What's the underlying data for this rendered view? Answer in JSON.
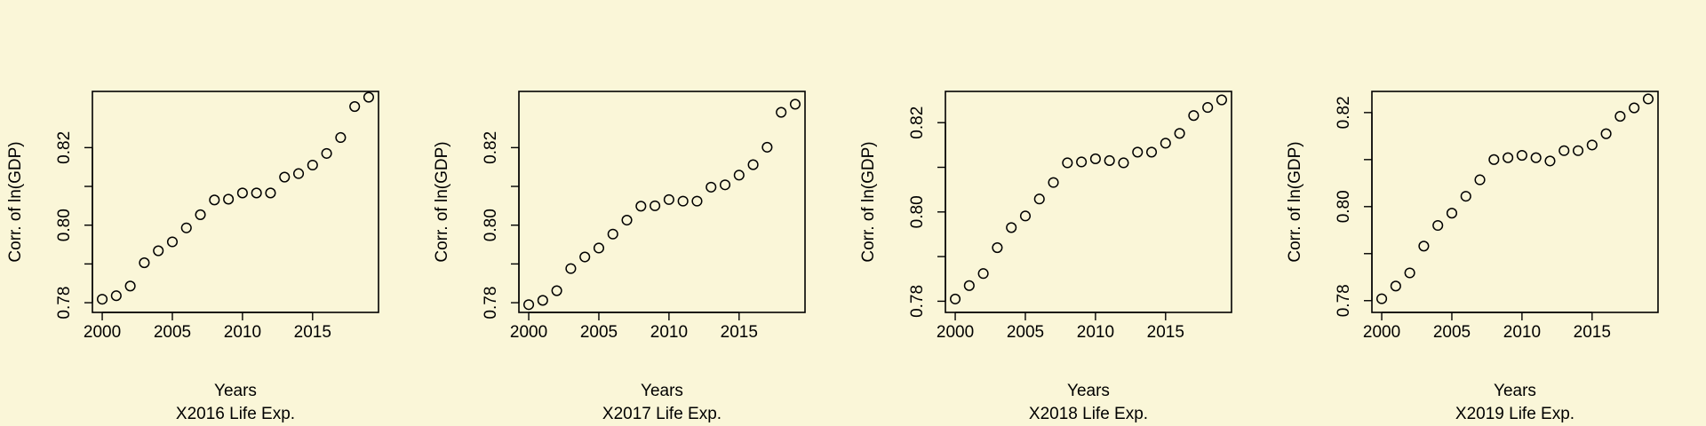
{
  "colors": {
    "background": "#faf6d8",
    "ink": "#000000"
  },
  "chart_data": [
    {
      "type": "scatter",
      "xlabel": "Years",
      "subtitle": "X2016 Life Exp.",
      "ylabel": "Corr. of ln(GDP)",
      "xlim": [
        1999.3,
        2019.7
      ],
      "ylim": [
        0.7775,
        0.8345
      ],
      "xticks": [
        2000,
        2005,
        2010,
        2015
      ],
      "xtick_labels": [
        "2000",
        "2005",
        "2010",
        "2015"
      ],
      "yticks": [
        0.78,
        0.79,
        0.8,
        0.81,
        0.82
      ],
      "ytick_labels": [
        "0.78",
        "",
        "0.80",
        "",
        "0.82"
      ],
      "x": [
        2000,
        2001,
        2002,
        2003,
        2004,
        2005,
        2006,
        2007,
        2008,
        2009,
        2010,
        2011,
        2012,
        2013,
        2014,
        2015,
        2016,
        2017,
        2018,
        2019
      ],
      "y": [
        0.7809,
        0.7818,
        0.7843,
        0.7903,
        0.7934,
        0.7957,
        0.7993,
        0.8027,
        0.8065,
        0.8067,
        0.8083,
        0.8083,
        0.8083,
        0.8124,
        0.8133,
        0.8155,
        0.8185,
        0.8226,
        0.8306,
        0.833
      ]
    },
    {
      "type": "scatter",
      "xlabel": "Years",
      "subtitle": "X2017 Life Exp.",
      "ylabel": "Corr. of ln(GDP)",
      "xlim": [
        1999.3,
        2019.7
      ],
      "ylim": [
        0.7775,
        0.8345
      ],
      "xticks": [
        2000,
        2005,
        2010,
        2015
      ],
      "xtick_labels": [
        "2000",
        "2005",
        "2010",
        "2015"
      ],
      "yticks": [
        0.78,
        0.79,
        0.8,
        0.81,
        0.82
      ],
      "ytick_labels": [
        "0.78",
        "",
        "0.80",
        "",
        "0.82"
      ],
      "x": [
        2000,
        2001,
        2002,
        2003,
        2004,
        2005,
        2006,
        2007,
        2008,
        2009,
        2010,
        2011,
        2012,
        2013,
        2014,
        2015,
        2016,
        2017,
        2018,
        2019
      ],
      "y": [
        0.7795,
        0.7806,
        0.7831,
        0.7888,
        0.7918,
        0.7941,
        0.7977,
        0.8013,
        0.8049,
        0.805,
        0.8066,
        0.8062,
        0.8062,
        0.8098,
        0.8104,
        0.8129,
        0.8156,
        0.8201,
        0.8291,
        0.8312
      ]
    },
    {
      "type": "scatter",
      "xlabel": "Years",
      "subtitle": "X2018 Life Exp.",
      "ylabel": "Corr. of ln(GDP)",
      "xlim": [
        1999.3,
        2019.7
      ],
      "ylim": [
        0.7775,
        0.827
      ],
      "xticks": [
        2000,
        2005,
        2010,
        2015
      ],
      "xtick_labels": [
        "2000",
        "2005",
        "2010",
        "2015"
      ],
      "yticks": [
        0.78,
        0.79,
        0.8,
        0.81,
        0.82
      ],
      "ytick_labels": [
        "0.78",
        "",
        "0.80",
        "",
        "0.82"
      ],
      "x": [
        2000,
        2001,
        2002,
        2003,
        2004,
        2005,
        2006,
        2007,
        2008,
        2009,
        2010,
        2011,
        2012,
        2013,
        2014,
        2015,
        2016,
        2017,
        2018,
        2019
      ],
      "y": [
        0.7805,
        0.7835,
        0.7862,
        0.792,
        0.7965,
        0.7991,
        0.8029,
        0.8066,
        0.811,
        0.8112,
        0.8119,
        0.8115,
        0.811,
        0.8134,
        0.8134,
        0.8154,
        0.8176,
        0.8216,
        0.8234,
        0.8251
      ]
    },
    {
      "type": "scatter",
      "xlabel": "Years",
      "subtitle": "X2019 Life Exp.",
      "ylabel": "Corr. of ln(GDP)",
      "xlim": [
        1999.3,
        2019.7
      ],
      "ylim": [
        0.7775,
        0.8245
      ],
      "xticks": [
        2000,
        2005,
        2010,
        2015
      ],
      "xtick_labels": [
        "2000",
        "2005",
        "2010",
        "2015"
      ],
      "yticks": [
        0.78,
        0.79,
        0.8,
        0.81,
        0.82
      ],
      "ytick_labels": [
        "0.78",
        "",
        "0.80",
        "",
        "0.82"
      ],
      "x": [
        2000,
        2001,
        2002,
        2003,
        2004,
        2005,
        2006,
        2007,
        2008,
        2009,
        2010,
        2011,
        2012,
        2013,
        2014,
        2015,
        2016,
        2017,
        2018,
        2019
      ],
      "y": [
        0.7804,
        0.7831,
        0.7859,
        0.7916,
        0.796,
        0.7986,
        0.8022,
        0.8057,
        0.81,
        0.8104,
        0.8109,
        0.8104,
        0.8097,
        0.8119,
        0.8119,
        0.8131,
        0.8155,
        0.8192,
        0.821,
        0.8229
      ]
    }
  ]
}
